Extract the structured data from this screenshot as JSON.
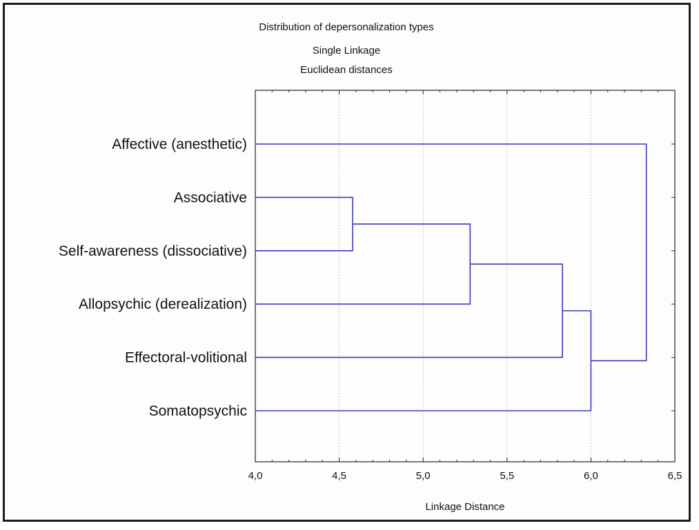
{
  "chart_data": {
    "type": "dendrogram",
    "title": "Distribution of depersonalization types",
    "subtitle_lines": [
      "Single Linkage",
      "Euclidean distances"
    ],
    "xlabel": "Linkage Distance",
    "xlim": [
      4.0,
      6.5
    ],
    "x_ticks": [
      4.0,
      4.5,
      5.0,
      5.5,
      6.0,
      6.5
    ],
    "x_tick_labels": [
      "4,0",
      "4,5",
      "5,0",
      "5,5",
      "6,0",
      "6,5"
    ],
    "grid": "vertical dotted",
    "leaves": [
      "Affective  (anesthetic)",
      "Associative",
      "Self-awareness (dissociative)",
      "Allopsychic (derealization)",
      "Effectoral-volitional",
      "Somatopsychic"
    ],
    "merges": [
      {
        "left": "L1",
        "right": "L2",
        "distance": 4.58
      },
      {
        "left": "N0",
        "right": "L3",
        "distance": 5.28
      },
      {
        "left": "N1",
        "right": "L4",
        "distance": 5.83
      },
      {
        "left": "N2",
        "right": "L5",
        "distance": 6.0
      },
      {
        "left": "L0",
        "right": "N3",
        "distance": 6.33
      }
    ],
    "line_color": "#3a3ab8"
  }
}
